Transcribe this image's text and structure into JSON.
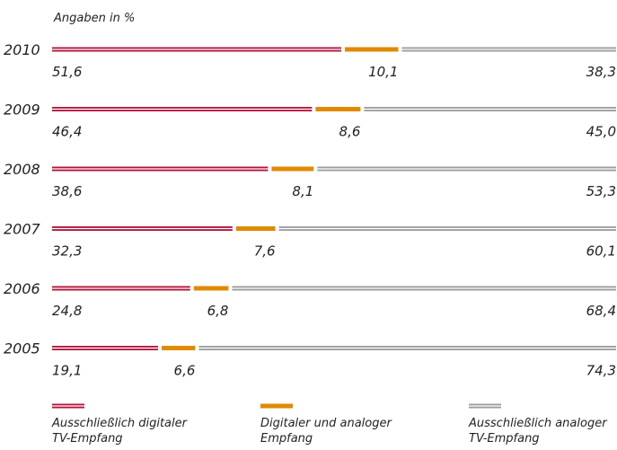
{
  "chart_data": {
    "type": "bar",
    "orientation": "horizontal",
    "stacked": true,
    "subtitle": "Angaben in %",
    "categories": [
      "2010",
      "2009",
      "2008",
      "2007",
      "2006",
      "2005"
    ],
    "xlim": [
      0,
      100
    ],
    "series": [
      {
        "name": "Ausschließlich digitaler TV-Empfang",
        "color": "#b3163d",
        "style": "double",
        "values": [
          51.6,
          46.4,
          38.6,
          32.3,
          24.8,
          19.1
        ],
        "value_labels": [
          "51,6",
          "46,4",
          "38,6",
          "32,3",
          "24,8",
          "19,1"
        ]
      },
      {
        "name": "Digitaler und analoger Empfang",
        "color": "#e08a00",
        "style": "solid",
        "values": [
          10.1,
          8.6,
          8.1,
          7.6,
          6.8,
          6.6
        ],
        "value_labels": [
          "10,1",
          "8,6",
          "8,1",
          "7,6",
          "6,8",
          "6,6"
        ]
      },
      {
        "name": "Ausschließlich analoger TV-Empfang",
        "color": "#9e9e9e",
        "style": "double",
        "values": [
          38.3,
          45.0,
          53.3,
          60.1,
          68.4,
          74.3
        ],
        "value_labels": [
          "38,3",
          "45,0",
          "53,3",
          "60,1",
          "68,4",
          "74,3"
        ]
      }
    ]
  }
}
